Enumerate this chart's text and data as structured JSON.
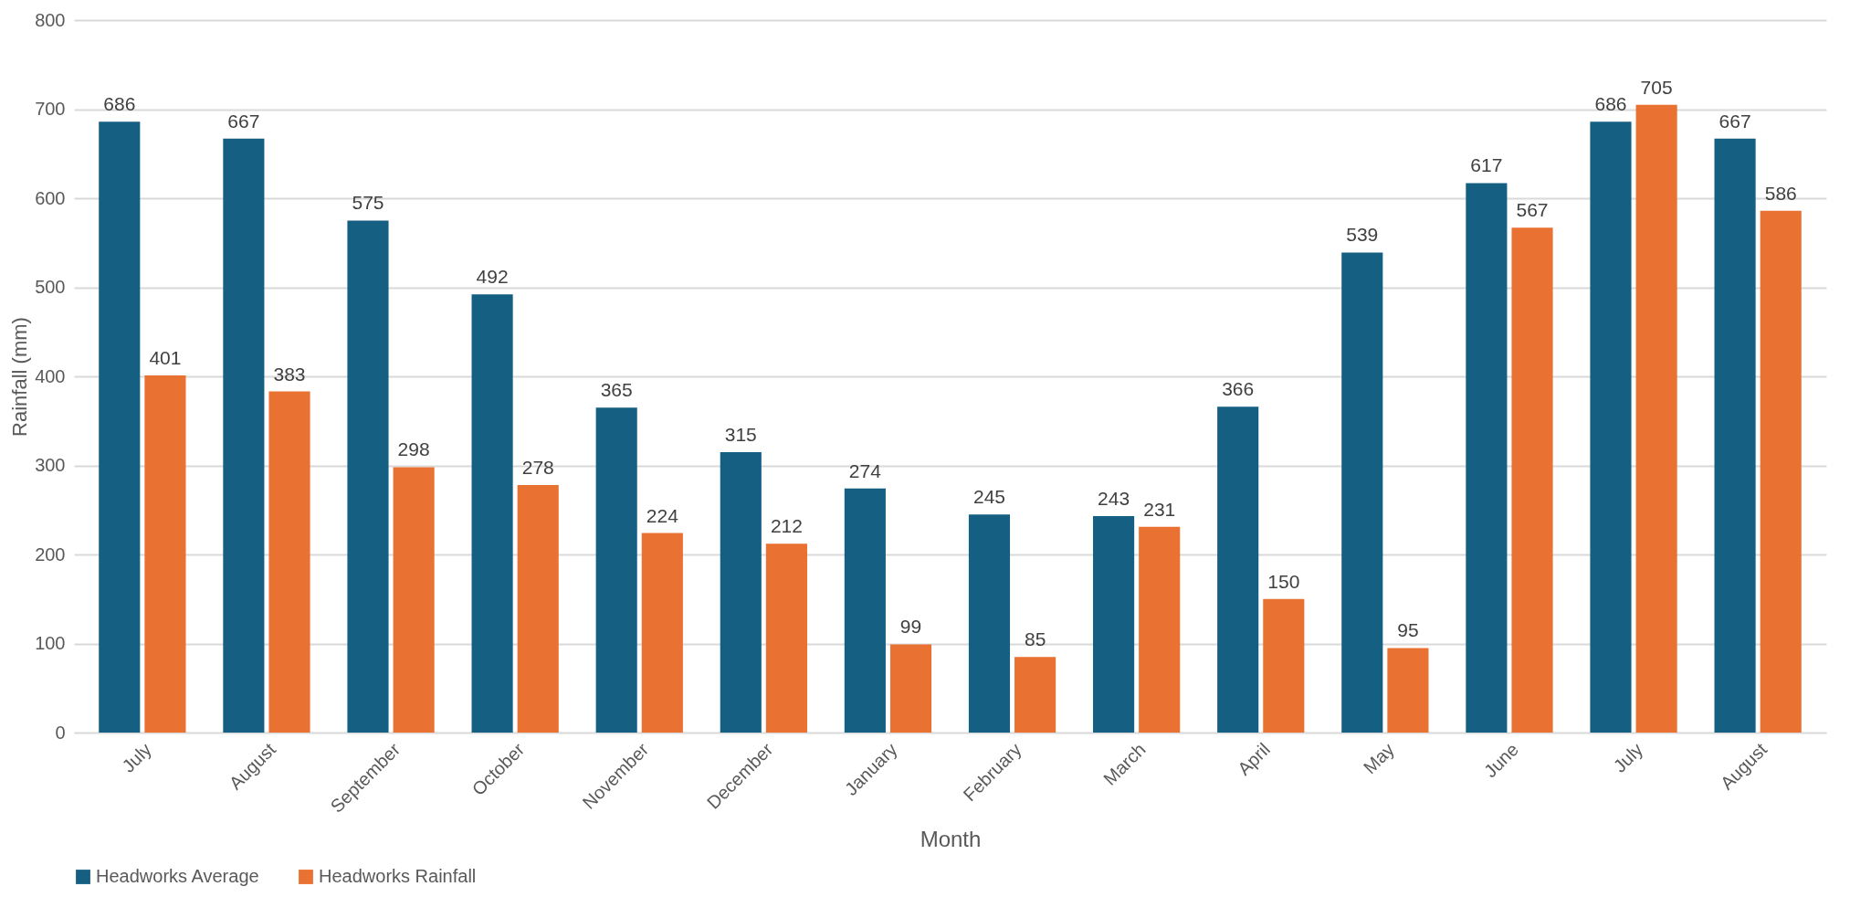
{
  "chart_data": {
    "type": "bar",
    "xlabel": "Month",
    "ylabel": "Rainfall (mm)",
    "categories": [
      "July",
      "August",
      "September",
      "October",
      "November",
      "December",
      "January",
      "February",
      "March",
      "April",
      "May",
      "June",
      "July",
      "August"
    ],
    "series": [
      {
        "name": "Headworks Average",
        "color": "#156082",
        "values": [
          686,
          667,
          575,
          492,
          365,
          315,
          274,
          245,
          243,
          366,
          539,
          617,
          686,
          667
        ]
      },
      {
        "name": "Headworks Rainfall",
        "color": "#e97132",
        "values": [
          401,
          383,
          298,
          278,
          224,
          212,
          99,
          85,
          231,
          150,
          95,
          567,
          705,
          586
        ]
      }
    ],
    "ylim": [
      0,
      800
    ],
    "yticks": [
      0,
      100,
      200,
      300,
      400,
      500,
      600,
      700,
      800
    ],
    "grid": "y",
    "legend": "bottom",
    "data_labels": true
  }
}
